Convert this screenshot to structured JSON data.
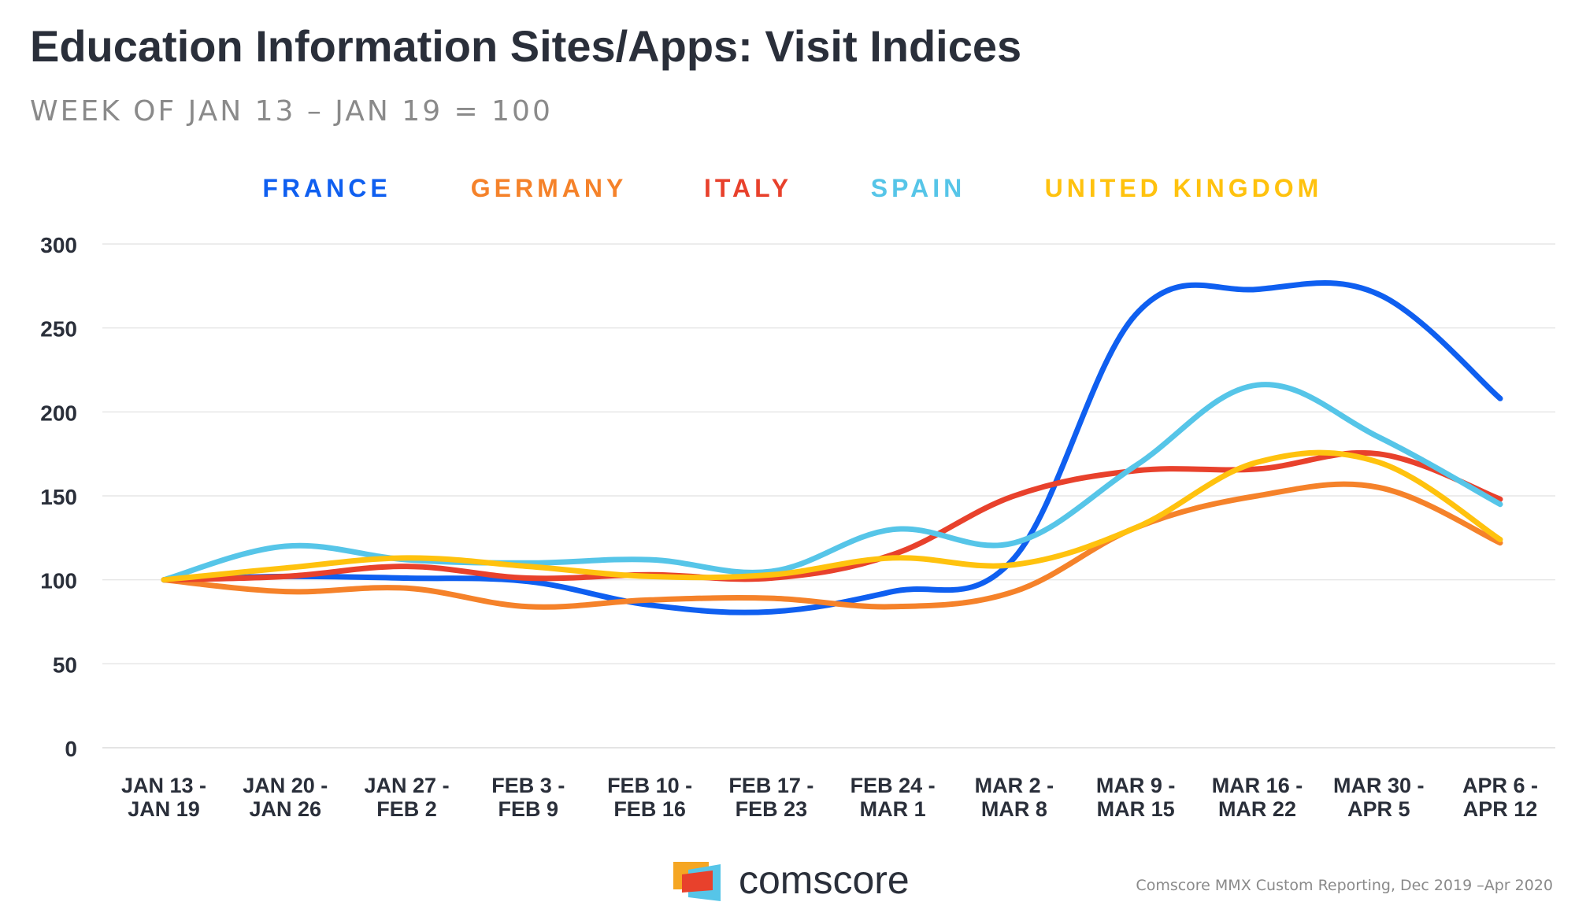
{
  "chart_data": {
    "type": "line",
    "title": "Education Information Sites/Apps: Visit Indices",
    "subtitle": "WEEK OF JAN 13 – JAN 19 = 100",
    "ylim": [
      0,
      300
    ],
    "yticks": [
      0,
      50,
      100,
      150,
      200,
      250,
      300
    ],
    "grid": true,
    "legend_position": "top",
    "categories": [
      [
        "JAN 13 -",
        "JAN 19"
      ],
      [
        "JAN 20 -",
        "JAN 26"
      ],
      [
        "JAN 27 -",
        "FEB 2"
      ],
      [
        "FEB 3 -",
        "FEB 9"
      ],
      [
        "FEB 10 -",
        "FEB 16"
      ],
      [
        "FEB 17 -",
        "FEB 23"
      ],
      [
        "FEB 24 -",
        "MAR 1"
      ],
      [
        "MAR 2 -",
        "MAR 8"
      ],
      [
        "MAR 9 -",
        "MAR 15"
      ],
      [
        "MAR 16 -",
        "MAR 22"
      ],
      [
        "MAR 30 -",
        "APR 5"
      ],
      [
        "APR 6 -",
        "APR 12"
      ]
    ],
    "series": [
      {
        "name": "FRANCE",
        "color": "#0f5ff0",
        "values": [
          100,
          102,
          101,
          99,
          85,
          81,
          93,
          113,
          258,
          273,
          270,
          208
        ]
      },
      {
        "name": "GERMANY",
        "color": "#f5822a",
        "values": [
          100,
          93,
          95,
          84,
          88,
          89,
          84,
          93,
          131,
          150,
          155,
          122
        ]
      },
      {
        "name": "ITALY",
        "color": "#e8412c",
        "values": [
          100,
          102,
          108,
          101,
          103,
          101,
          115,
          150,
          165,
          166,
          175,
          148
        ]
      },
      {
        "name": "SPAIN",
        "color": "#56c5e8",
        "values": [
          100,
          120,
          112,
          110,
          112,
          105,
          130,
          122,
          168,
          216,
          185,
          145
        ]
      },
      {
        "name": "UNITED KINGDOM",
        "color": "#ffc20e",
        "values": [
          100,
          107,
          113,
          108,
          102,
          103,
          113,
          109,
          131,
          170,
          170,
          124
        ]
      }
    ]
  },
  "logo": {
    "text": "comscore",
    "colors": [
      "#f5a623",
      "#e8412c",
      "#56c5e8"
    ]
  },
  "source": "Comscore MMX Custom Reporting, Dec 2019 –Apr 2020",
  "colors": {
    "title": "#2a2f3a",
    "subtitle": "#8a8a8a",
    "axis_text": "#2a2f3a",
    "grid": "#e3e3e3",
    "source_text": "#8a8a8a"
  }
}
